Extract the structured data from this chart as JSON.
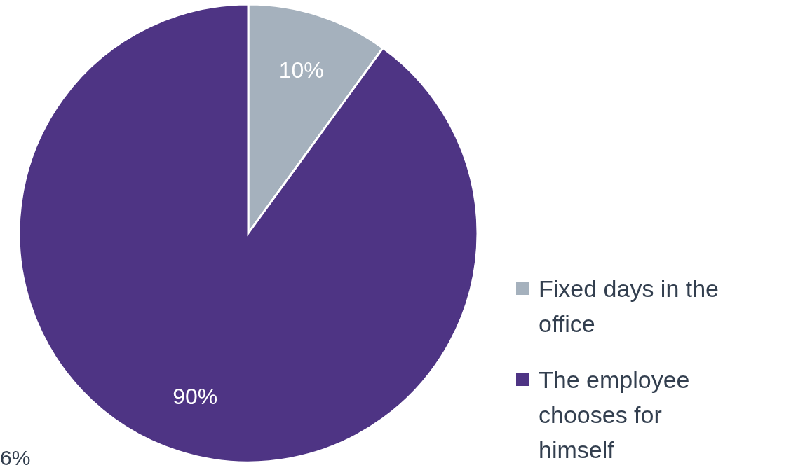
{
  "chart_data": {
    "type": "pie",
    "categories": [
      "Fixed days in the office",
      "The employee chooses for himself"
    ],
    "values": [
      10,
      90
    ],
    "colors": [
      "#a5b1bd",
      "#4e3484"
    ],
    "value_labels": [
      "10%",
      "90%"
    ],
    "legend": "right",
    "annotations": [
      "6%"
    ]
  }
}
